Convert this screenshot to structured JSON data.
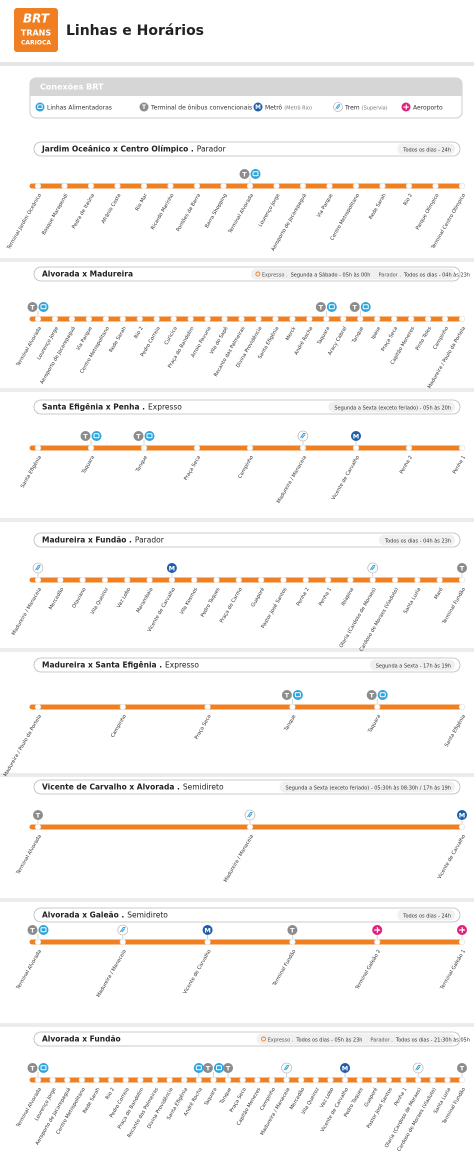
{
  "header": {
    "logo": [
      "BRT",
      "TRANS",
      "CARIOCA"
    ],
    "title": "Linhas e Horários"
  },
  "legend": {
    "title": "Conexões BRT",
    "items": [
      {
        "label": "Linhas Alimentadoras"
      },
      {
        "label": "Terminal de ônibus convencionais",
        "symbol": "T"
      },
      {
        "label": "Metrô",
        "note": "(Metrô Rio)",
        "symbol": "M"
      },
      {
        "label": "Trem",
        "note": "(Supervia)"
      },
      {
        "label": "Aeroporto"
      }
    ]
  },
  "routes": [
    {
      "name": "Jardim Oceânico x Centro Olímpico .",
      "kind": "Parador",
      "schedules": [
        {
          "days": "Todos os dias - 24h"
        }
      ],
      "stations": [
        {
          "name": "Terminal Jardim Oceânico"
        },
        {
          "name": "Bosque Marapendi"
        },
        {
          "name": "Pedra de Itaúna"
        },
        {
          "name": "Afrânio Costa"
        },
        {
          "name": "Rio Mar"
        },
        {
          "name": "Ricardo Marinho"
        },
        {
          "name": "Pontões da Barra"
        },
        {
          "name": "Barra Shopping"
        },
        {
          "name": "Terminal Alvorada",
          "connections": [
            "Terminal de ônibus convencionais",
            "Linhas Alimentadoras"
          ]
        },
        {
          "name": "Lourenço Jorge"
        },
        {
          "name": "Aeroporto de Jacarepaguá"
        },
        {
          "name": "Via Parque"
        },
        {
          "name": "Centro Metropolitano"
        },
        {
          "name": "Rede Sarah"
        },
        {
          "name": "Rio 2"
        },
        {
          "name": "Parque Olímpico"
        },
        {
          "name": "Terminal Centro Olímpico"
        }
      ]
    },
    {
      "name": "Alvorada x Madureira",
      "kind": "",
      "schedules": [
        {
          "service": "Expresso .",
          "days": "Segunda a Sábado - 05h às 00h"
        },
        {
          "service": "Parador .",
          "days": "Todos os dias - 04h às 23h"
        }
      ],
      "stations": [
        {
          "name": "Terminal Alvorada",
          "connections": [
            "Terminal de ônibus convencionais",
            "Linhas Alimentadoras"
          ]
        },
        {
          "name": "Lourenço Jorge"
        },
        {
          "name": "Aeroporto de Jacarepaguá"
        },
        {
          "name": "Via Parque"
        },
        {
          "name": "Centro Metropolitano"
        },
        {
          "name": "Rede Sarah"
        },
        {
          "name": "Rio 2"
        },
        {
          "name": "Pedro Correia"
        },
        {
          "name": "Curicica"
        },
        {
          "name": "Praça do Bandolim"
        },
        {
          "name": "Arroio Pavuna"
        },
        {
          "name": "Vila do Sapê"
        },
        {
          "name": "Recanto das Palmeiras"
        },
        {
          "name": "Divina Providência"
        },
        {
          "name": "Santa Efigênia"
        },
        {
          "name": "Merck"
        },
        {
          "name": "André Rocha"
        },
        {
          "name": "Taquara",
          "connections": [
            "Terminal de ônibus convencionais",
            "Linhas Alimentadoras"
          ]
        },
        {
          "name": "Aracy Cabral"
        },
        {
          "name": "Tanque",
          "connections": [
            "Terminal de ônibus convencionais",
            "Linhas Alimentadoras"
          ]
        },
        {
          "name": "Ipase"
        },
        {
          "name": "Praça Seca"
        },
        {
          "name": "Capitão Menezes"
        },
        {
          "name": "Pinto Teles"
        },
        {
          "name": "Campinho"
        },
        {
          "name": "Madureira / Paulo da Portela"
        }
      ]
    },
    {
      "name": "Santa Efigênia x Penha .",
      "kind": "Expresso",
      "schedules": [
        {
          "days": "Segunda a Sexta (exceto feriado) - 05h às 20h"
        }
      ],
      "stations": [
        {
          "name": "Santa Efigênia"
        },
        {
          "name": "Taquara",
          "connections": [
            "Terminal de ônibus convencionais",
            "Linhas Alimentadoras"
          ]
        },
        {
          "name": "Tanque",
          "connections": [
            "Terminal de ônibus convencionais",
            "Linhas Alimentadoras"
          ]
        },
        {
          "name": "Praça Seca"
        },
        {
          "name": "Campinho"
        },
        {
          "name": "Madureira / Manaceia",
          "connections": [
            "Trem"
          ]
        },
        {
          "name": "Vicente de Carvalho",
          "connections": [
            "Metrô"
          ]
        },
        {
          "name": "Penha 2"
        },
        {
          "name": "Penha 1"
        }
      ]
    },
    {
      "name": "Madureira x Fundão .",
      "kind": "Parador",
      "schedules": [
        {
          "days": "Todos os dias - 04h às 23h"
        }
      ],
      "stations": [
        {
          "name": "Madureira / Manaceia",
          "connections": [
            "Trem"
          ]
        },
        {
          "name": "Mercadão"
        },
        {
          "name": "Otaviano"
        },
        {
          "name": "Vila Queiroz"
        },
        {
          "name": "Vaz Lobo"
        },
        {
          "name": "Marambaia"
        },
        {
          "name": "Vicente de Carvalho",
          "connections": [
            "Metrô"
          ]
        },
        {
          "name": "Vila Kosmos"
        },
        {
          "name": "Pedro Taques"
        },
        {
          "name": "Praça do Carmo"
        },
        {
          "name": "Guaporé"
        },
        {
          "name": "Pastor José Santos"
        },
        {
          "name": "Penha 2"
        },
        {
          "name": "Penha 1"
        },
        {
          "name": "Ibiapina"
        },
        {
          "name": "Olaria (Cardoso de Moraes)",
          "connections": [
            "Trem"
          ]
        },
        {
          "name": "Cardoso de Moraes (Viaduto)"
        },
        {
          "name": "Santa Luzia"
        },
        {
          "name": "Maré"
        },
        {
          "name": "Terminal Fundão",
          "connections": [
            "Terminal de ônibus convencionais"
          ]
        }
      ]
    },
    {
      "name": "Madureira x Santa Efigênia .",
      "kind": "Expresso",
      "schedules": [
        {
          "days": "Segunda a Sexta - 17h às 19h"
        }
      ],
      "stations": [
        {
          "name": "Madureira / Paulo da Portela"
        },
        {
          "name": "Campinho"
        },
        {
          "name": "Praça Seca"
        },
        {
          "name": "Tanque",
          "connections": [
            "Terminal de ônibus convencionais",
            "Linhas Alimentadoras"
          ]
        },
        {
          "name": "Taquara",
          "connections": [
            "Terminal de ônibus convencionais",
            "Linhas Alimentadoras"
          ]
        },
        {
          "name": "Santa Efigênia"
        }
      ]
    },
    {
      "name": "Vicente de Carvalho x Alvorada .",
      "kind": "Semidireto",
      "schedules": [
        {
          "days": "Segunda a Sexta (exceto feriado) - 05:30h às 08:30h / 17h às 19h"
        }
      ],
      "stations": [
        {
          "name": "Terminal Alvorada",
          "connections": [
            "Terminal de ônibus convencionais"
          ]
        },
        {
          "name": "Madureira / Manaceia",
          "connections": [
            "Trem"
          ]
        },
        {
          "name": "Vicente de Carvalho",
          "connections": [
            "Metrô"
          ]
        }
      ]
    },
    {
      "name": "Alvorada x Galeão .",
      "kind": "Semidireto",
      "schedules": [
        {
          "days": "Todos os dias - 24h"
        }
      ],
      "stations": [
        {
          "name": "Terminal Alvorada",
          "connections": [
            "Terminal de ônibus convencionais",
            "Linhas Alimentadoras"
          ]
        },
        {
          "name": "Madureira / Manaceia",
          "connections": [
            "Trem"
          ]
        },
        {
          "name": "Vicente de Carvalho",
          "connections": [
            "Metrô"
          ]
        },
        {
          "name": "Terminal Fundão",
          "connections": [
            "Terminal de ônibus convencionais"
          ]
        },
        {
          "name": "Terminal Galeão 2",
          "connections": [
            "Aeroporto"
          ]
        },
        {
          "name": "Terminal Galeão 1",
          "connections": [
            "Aeroporto"
          ]
        }
      ]
    },
    {
      "name": "Alvorada x Fundão",
      "kind": "",
      "schedules": [
        {
          "service": "Expresso .",
          "days": "Todos os dias - 05h às 23h"
        },
        {
          "service": "Parador .",
          "days": "Todos os dias - 21:30h às 05h"
        }
      ],
      "stations": [
        {
          "name": "Terminal Alvorada",
          "connections": [
            "Terminal de ônibus convencionais",
            "Linhas Alimentadoras"
          ]
        },
        {
          "name": "Lourenço Jorge"
        },
        {
          "name": "Aeroporto de Jacarepaguá"
        },
        {
          "name": "Centro Metropolitano"
        },
        {
          "name": "Rede Sarah"
        },
        {
          "name": "Rio 2"
        },
        {
          "name": "Pedro Correia"
        },
        {
          "name": "Praça do Bandolim"
        },
        {
          "name": "Recanto das Palmeiras"
        },
        {
          "name": "Divina Providência"
        },
        {
          "name": "Santa Efigênia"
        },
        {
          "name": "André Rocha",
          "connections": [
            "Linhas Alimentadoras"
          ]
        },
        {
          "name": "Taquara",
          "connections": [
            "Terminal de ônibus convencionais",
            "Linhas Alimentadoras"
          ]
        },
        {
          "name": "Tanque",
          "connections": [
            "Terminal de ônibus convencionais"
          ]
        },
        {
          "name": "Praça Seca"
        },
        {
          "name": "Capitão Menezes"
        },
        {
          "name": "Campinho"
        },
        {
          "name": "Madureira / Manaceia",
          "connections": [
            "Trem"
          ]
        },
        {
          "name": "Mercadão"
        },
        {
          "name": "Vila Queiroz"
        },
        {
          "name": "Vaz Lobo"
        },
        {
          "name": "Vicente de Carvalho",
          "connections": [
            "Metrô"
          ]
        },
        {
          "name": "Pedro Taques"
        },
        {
          "name": "Guaporé"
        },
        {
          "name": "Pastor José Santos"
        },
        {
          "name": "Penha 1"
        },
        {
          "name": "Olaria (Cardoso de Moraes)",
          "connections": [
            "Trem"
          ]
        },
        {
          "name": "Cardoso de Moraes (Viaduto)"
        },
        {
          "name": "Santa Luzia"
        },
        {
          "name": "Terminal Fundão",
          "connections": [
            "Terminal de ônibus convencionais"
          ]
        }
      ]
    }
  ]
}
